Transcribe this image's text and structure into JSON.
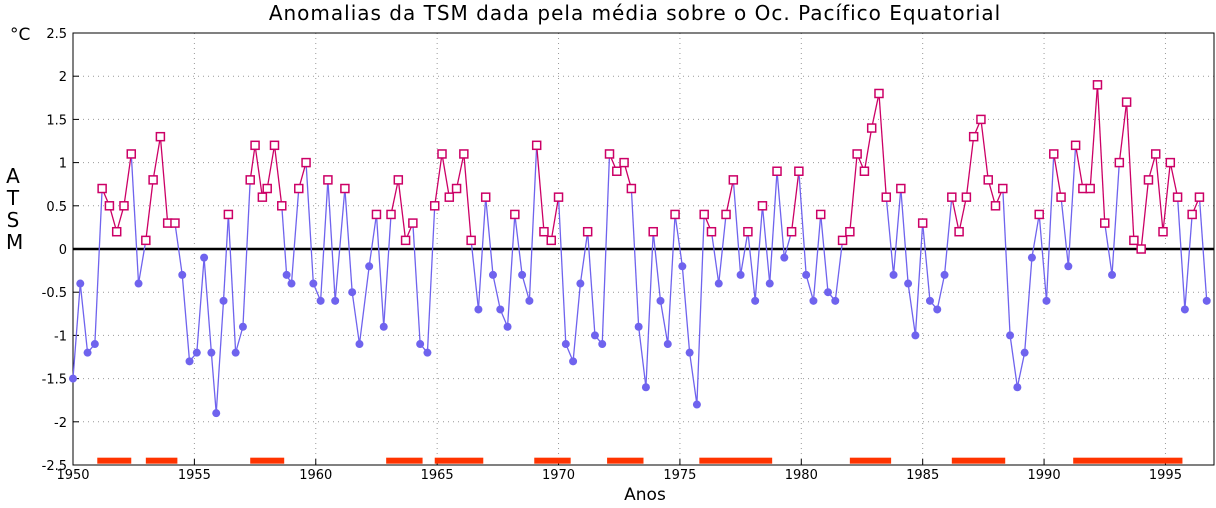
{
  "chart_data": {
    "type": "line",
    "title": "Anomalias da TSM dada pela média sobre o Oc. Pacífico Equatorial",
    "y_unit": "°C",
    "y_label": "ATSM",
    "x_label": "Anos",
    "xlim": [
      1950,
      1997
    ],
    "xticks": [
      1950,
      1955,
      1960,
      1965,
      1970,
      1975,
      1980,
      1985,
      1990,
      1995
    ],
    "ylim": [
      -2.5,
      2.5
    ],
    "yticks": [
      -2.5,
      -2,
      -1.5,
      -1,
      -0.5,
      0,
      0.5,
      1,
      1.5,
      2,
      2.5
    ],
    "grid": true,
    "zero_line": true,
    "positive_color": "#cc0066",
    "negative_color": "#6f63ee",
    "x": [
      1950.0,
      1950.3,
      1950.6,
      1950.9,
      1951.2,
      1951.5,
      1951.8,
      1952.1,
      1952.4,
      1952.7,
      1953.0,
      1953.3,
      1953.6,
      1953.9,
      1954.2,
      1954.5,
      1954.8,
      1955.1,
      1955.4,
      1955.7,
      1955.9,
      1956.2,
      1956.4,
      1956.7,
      1957.0,
      1957.3,
      1957.5,
      1957.8,
      1958.0,
      1958.3,
      1958.6,
      1958.8,
      1959.0,
      1959.3,
      1959.6,
      1959.9,
      1960.2,
      1960.5,
      1960.8,
      1961.2,
      1961.5,
      1961.8,
      1962.2,
      1962.5,
      1962.8,
      1963.1,
      1963.4,
      1963.7,
      1964.0,
      1964.3,
      1964.6,
      1964.9,
      1965.2,
      1965.5,
      1965.8,
      1966.1,
      1966.4,
      1966.7,
      1967.0,
      1967.3,
      1967.6,
      1967.9,
      1968.2,
      1968.5,
      1968.8,
      1969.1,
      1969.4,
      1969.7,
      1970.0,
      1970.3,
      1970.6,
      1970.9,
      1971.2,
      1971.5,
      1971.8,
      1972.1,
      1972.4,
      1972.7,
      1973.0,
      1973.3,
      1973.6,
      1973.9,
      1974.2,
      1974.5,
      1974.8,
      1975.1,
      1975.4,
      1975.7,
      1976.0,
      1976.3,
      1976.6,
      1976.9,
      1977.2,
      1977.5,
      1977.8,
      1978.1,
      1978.4,
      1978.7,
      1979.0,
      1979.3,
      1979.6,
      1979.9,
      1980.2,
      1980.5,
      1980.8,
      1981.1,
      1981.4,
      1981.7,
      1982.0,
      1982.3,
      1982.6,
      1982.9,
      1983.2,
      1983.5,
      1983.8,
      1984.1,
      1984.4,
      1984.7,
      1985.0,
      1985.3,
      1985.6,
      1985.9,
      1986.2,
      1986.5,
      1986.8,
      1987.1,
      1987.4,
      1987.7,
      1988.0,
      1988.3,
      1988.6,
      1988.9,
      1989.2,
      1989.5,
      1989.8,
      1990.1,
      1990.4,
      1990.7,
      1991.0,
      1991.3,
      1991.6,
      1991.9,
      1992.2,
      1992.5,
      1992.8,
      1993.1,
      1993.4,
      1993.7,
      1994.0,
      1994.3,
      1994.6,
      1994.9,
      1995.2,
      1995.5,
      1995.8,
      1996.1,
      1996.4,
      1996.7
    ],
    "values": [
      -1.5,
      -0.4,
      -1.2,
      -1.1,
      0.7,
      0.5,
      0.2,
      0.5,
      1.1,
      -0.4,
      0.1,
      0.8,
      1.3,
      0.3,
      0.3,
      -0.3,
      -1.3,
      -1.2,
      -0.1,
      -1.2,
      -1.9,
      -0.6,
      0.4,
      -1.2,
      -0.9,
      0.8,
      1.2,
      0.6,
      0.7,
      1.2,
      0.5,
      -0.3,
      -0.4,
      0.7,
      1.0,
      -0.4,
      -0.6,
      0.8,
      -0.6,
      0.7,
      -0.5,
      -1.1,
      -0.2,
      0.4,
      -0.9,
      0.4,
      0.8,
      0.1,
      0.3,
      -1.1,
      -1.2,
      0.5,
      1.1,
      0.6,
      0.7,
      1.1,
      0.1,
      -0.7,
      0.6,
      -0.3,
      -0.7,
      -0.9,
      0.4,
      -0.3,
      -0.6,
      1.2,
      0.2,
      0.1,
      0.6,
      -1.1,
      -1.3,
      -0.4,
      0.2,
      -1.0,
      -1.1,
      1.1,
      0.9,
      1.0,
      0.7,
      -0.9,
      -1.6,
      0.2,
      -0.6,
      -1.1,
      0.4,
      -0.2,
      -1.2,
      -1.8,
      0.4,
      0.2,
      -0.4,
      0.4,
      0.8,
      -0.3,
      0.2,
      -0.6,
      0.5,
      -0.4,
      0.9,
      -0.1,
      0.2,
      0.9,
      -0.3,
      -0.6,
      0.4,
      -0.5,
      -0.6,
      0.1,
      0.2,
      1.1,
      0.9,
      1.4,
      1.8,
      0.6,
      -0.3,
      0.7,
      -0.4,
      -1.0,
      0.3,
      -0.6,
      -0.7,
      -0.3,
      0.6,
      0.2,
      0.6,
      1.3,
      1.5,
      0.8,
      0.5,
      0.7,
      -1.0,
      -1.6,
      -1.2,
      -0.1,
      0.4,
      -0.6,
      1.1,
      0.6,
      -0.2,
      1.2,
      0.7,
      0.7,
      1.9,
      0.3,
      -0.3,
      1.0,
      1.7,
      0.1,
      0.0,
      0.8,
      1.1,
      0.2,
      1.0,
      0.6,
      -0.7,
      0.4,
      0.6,
      -0.6
    ],
    "period_color": "#ff3300",
    "period_level": -2.45,
    "periods": [
      [
        1951.0,
        1952.4
      ],
      [
        1953.0,
        1954.3
      ],
      [
        1957.3,
        1958.7
      ],
      [
        1962.9,
        1964.4
      ],
      [
        1964.9,
        1966.9
      ],
      [
        1969.0,
        1970.5
      ],
      [
        1972.0,
        1973.5
      ],
      [
        1975.8,
        1978.8
      ],
      [
        1982.0,
        1983.7
      ],
      [
        1986.2,
        1988.4
      ],
      [
        1991.2,
        1995.7
      ]
    ]
  }
}
